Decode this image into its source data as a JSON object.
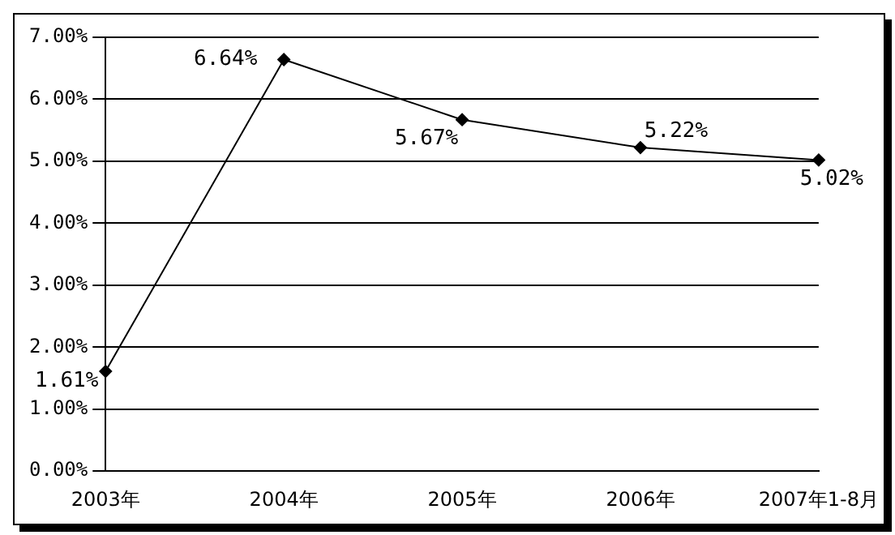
{
  "chart_data": {
    "type": "line",
    "categories": [
      "2003年",
      "2004年",
      "2005年",
      "2006年",
      "2007年1-8月"
    ],
    "series": [
      {
        "color": "#000000",
        "values": [
          1.61,
          6.64,
          5.67,
          5.22,
          5.02
        ],
        "value_labels": [
          "1.61%",
          "6.64%",
          "5.67%",
          "5.22%",
          "5.02%"
        ]
      }
    ],
    "ylim": [
      0,
      7
    ],
    "yticks": [
      {
        "value": 0,
        "label": "0.00%"
      },
      {
        "value": 1,
        "label": "1.00%"
      },
      {
        "value": 2,
        "label": "2.00%"
      },
      {
        "value": 3,
        "label": "3.00%"
      },
      {
        "value": 4,
        "label": "4.00%"
      },
      {
        "value": 5,
        "label": "5.00%"
      },
      {
        "value": 6,
        "label": "6.00%"
      },
      {
        "value": 7,
        "label": "7.00%"
      }
    ],
    "grid": "y",
    "legend": false,
    "marker": "diamond",
    "line_style": "solid"
  }
}
